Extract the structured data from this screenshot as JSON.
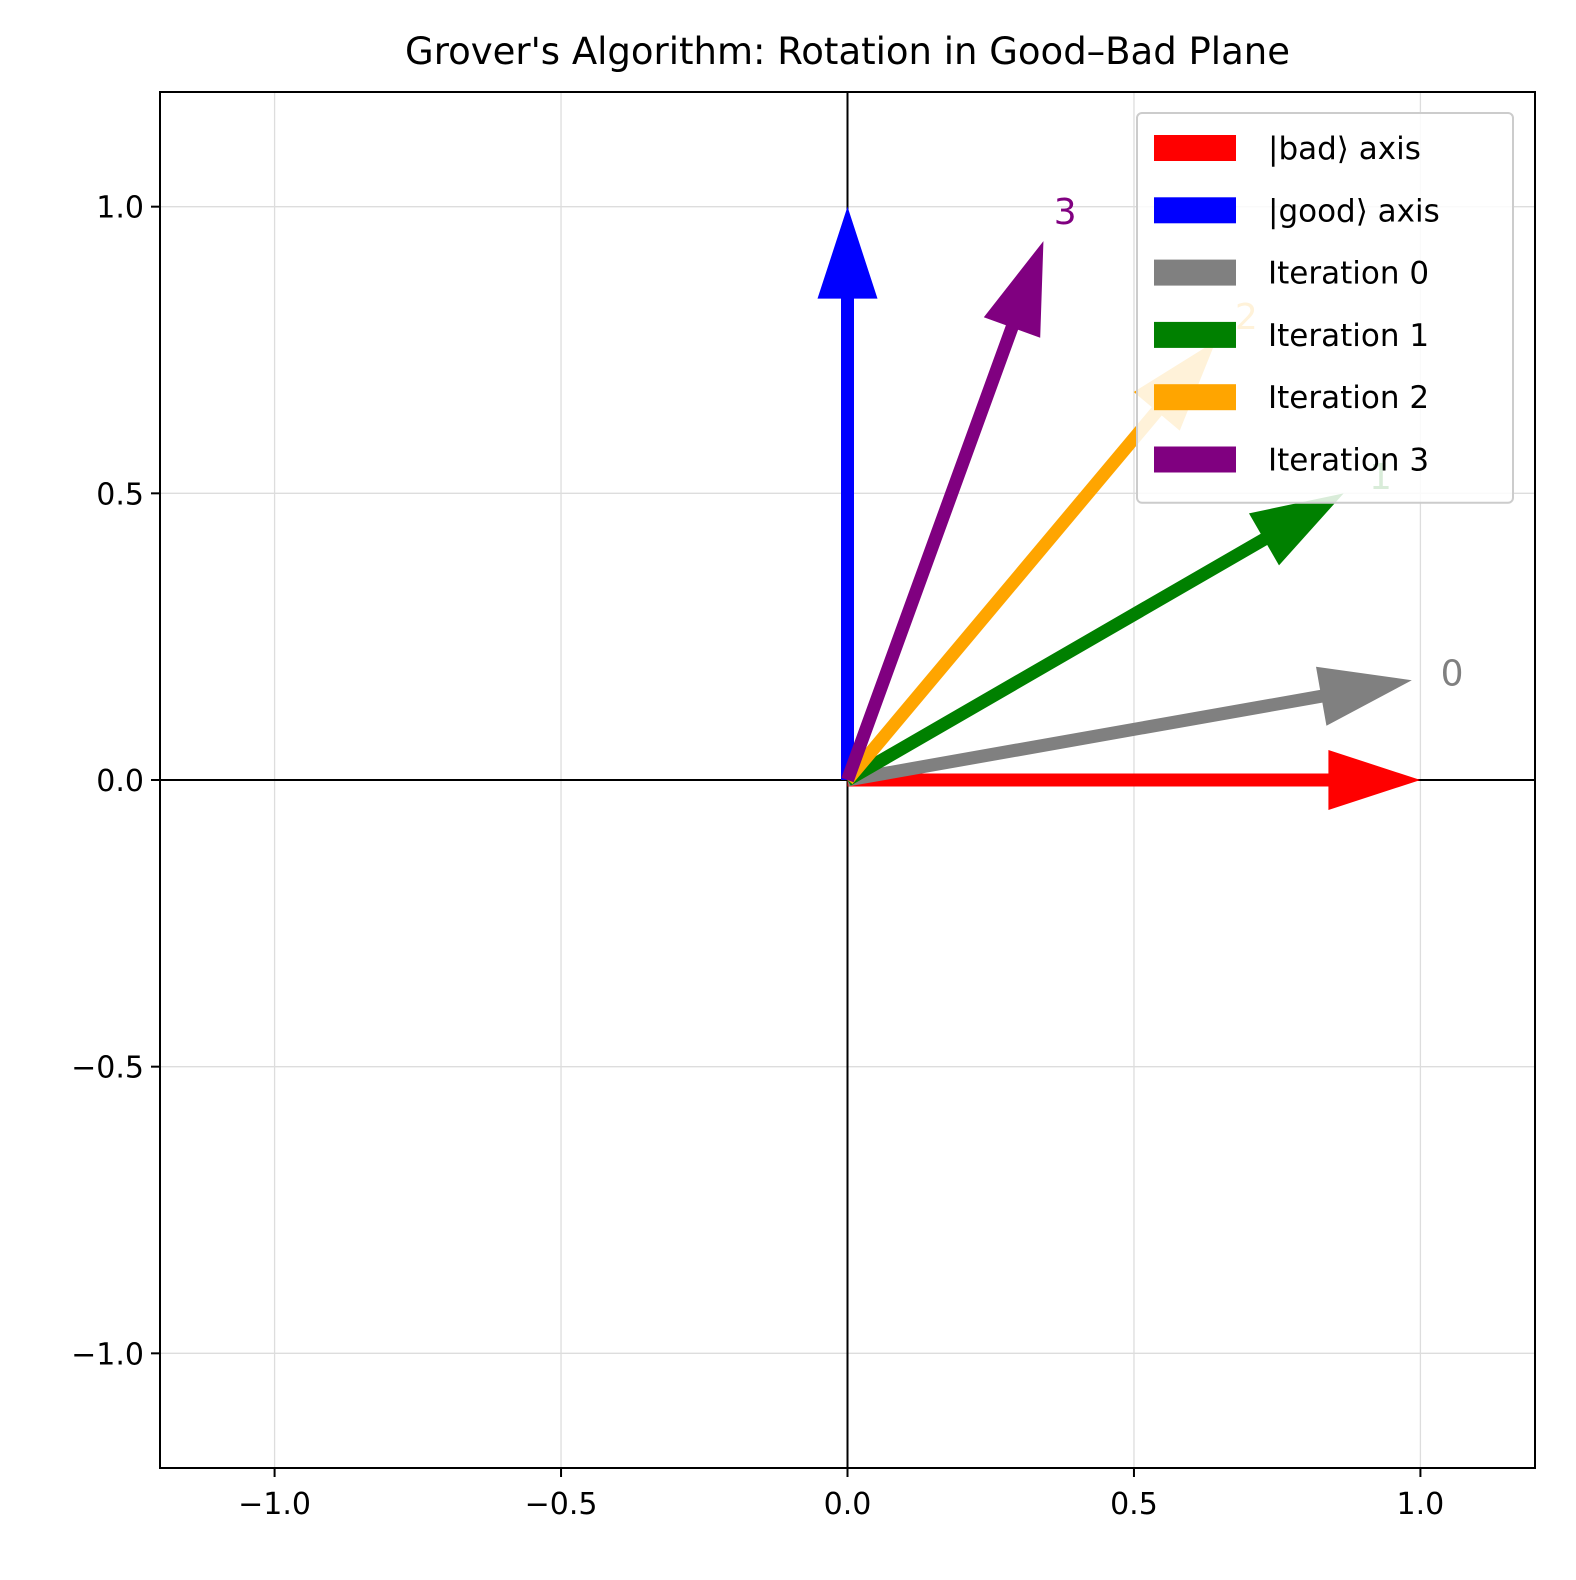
{
  "chart_data": {
    "type": "quiver",
    "title": "Grover's Algorithm: Rotation in Good–Bad Plane",
    "xlabel": "",
    "ylabel": "",
    "xlim": [
      -1.2,
      1.2
    ],
    "ylim": [
      -1.2,
      1.2
    ],
    "grid": true,
    "legend_position": "top-right",
    "x_ticks": [
      -1.0,
      -0.5,
      0.0,
      0.5,
      1.0
    ],
    "y_ticks": [
      -1.0,
      -0.5,
      0.0,
      0.5,
      1.0
    ],
    "x_tick_labels": [
      "−1.0",
      "−0.5",
      "0.0",
      "0.5",
      "1.0"
    ],
    "y_tick_labels": [
      "−1.0",
      "−0.5",
      "0.0",
      "0.5",
      "1.0"
    ],
    "axis_lines": [
      {
        "orientation": "horizontal",
        "at": 0.0
      },
      {
        "orientation": "vertical",
        "at": 0.0
      }
    ],
    "series": [
      {
        "name": "|bad⟩ axis",
        "color": "#ff0000",
        "x": 1.0,
        "y": 0.0,
        "label": ""
      },
      {
        "name": "|good⟩ axis",
        "color": "#0000ff",
        "x": 0.0,
        "y": 1.0,
        "label": ""
      },
      {
        "name": "Iteration 0",
        "color": "#808080",
        "x": 0.985,
        "y": 0.174,
        "label": "0"
      },
      {
        "name": "Iteration 1",
        "color": "#008000",
        "x": 0.866,
        "y": 0.5,
        "label": "1"
      },
      {
        "name": "Iteration 2",
        "color": "#ffa500",
        "x": 0.643,
        "y": 0.766,
        "label": "2"
      },
      {
        "name": "Iteration 3",
        "color": "#800080",
        "x": 0.342,
        "y": 0.94,
        "label": "3"
      }
    ]
  }
}
